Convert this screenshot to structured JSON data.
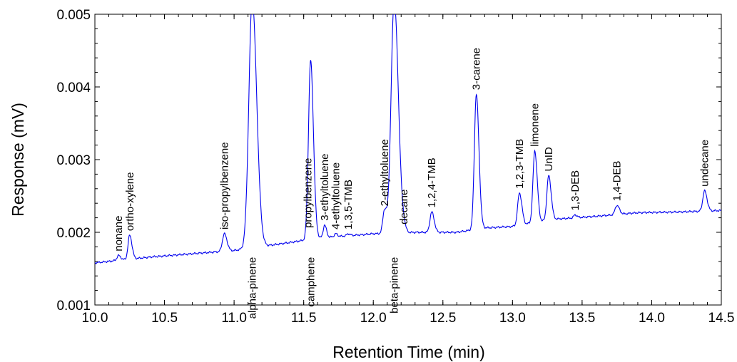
{
  "chart_data": {
    "type": "line",
    "xlabel": "Retention Time (min)",
    "ylabel": "Response (mV)",
    "xlim": [
      10.0,
      14.5
    ],
    "ylim": [
      0.001,
      0.005
    ],
    "xticks": [
      "10.0",
      "10.5",
      "11.0",
      "11.5",
      "12.0",
      "12.5",
      "13.0",
      "13.5",
      "14.0",
      "14.5"
    ],
    "yticks": [
      "0.001",
      "0.002",
      "0.003",
      "0.004",
      "0.005"
    ],
    "grid": false,
    "line_color": "#0000ee",
    "baseline": [
      [
        10.0,
        0.00158
      ],
      [
        10.4,
        0.00166
      ],
      [
        10.8,
        0.00172
      ],
      [
        11.0,
        0.00175
      ],
      [
        11.4,
        0.00186
      ],
      [
        11.6,
        0.00192
      ],
      [
        12.0,
        0.00198
      ],
      [
        12.3,
        0.002
      ],
      [
        12.6,
        0.002
      ],
      [
        12.8,
        0.00206
      ],
      [
        13.0,
        0.00208
      ],
      [
        13.3,
        0.00218
      ],
      [
        13.6,
        0.00222
      ],
      [
        13.9,
        0.00227
      ],
      [
        14.2,
        0.00228
      ],
      [
        14.5,
        0.0023
      ]
    ],
    "peaks": [
      {
        "label": "nonane",
        "rt": 10.17,
        "height": 0.00168,
        "width": 0.012,
        "label_side": "above"
      },
      {
        "label": "ortho-xylene",
        "rt": 10.25,
        "height": 0.00196,
        "width": 0.012,
        "label_side": "above"
      },
      {
        "label": "iso-propylbenzene",
        "rt": 10.93,
        "height": 0.00198,
        "width": 0.014,
        "label_side": "above"
      },
      {
        "label": "alpha-pinene",
        "rt": 11.13,
        "height": 0.0052,
        "width": 0.024,
        "label_side": "below"
      },
      {
        "label": "propylbenzene",
        "rt": 11.53,
        "height": 0.002,
        "width": 0.012,
        "label_side": "above"
      },
      {
        "label": "camphene",
        "rt": 11.55,
        "height": 0.00432,
        "width": 0.015,
        "label_side": "below"
      },
      {
        "label": "3-ethyltoluene",
        "rt": 11.65,
        "height": 0.0021,
        "width": 0.01,
        "label_side": "above"
      },
      {
        "label": "4-ethyltoluene",
        "rt": 11.73,
        "height": 0.00198,
        "width": 0.01,
        "label_side": "above"
      },
      {
        "label": "1,3,5-TMB",
        "rt": 11.82,
        "height": 0.00198,
        "width": 0.01,
        "label_side": "above"
      },
      {
        "label": "2-ethyltoluene",
        "rt": 12.08,
        "height": 0.0023,
        "width": 0.012,
        "label_side": "above"
      },
      {
        "label": "beta-pinene",
        "rt": 12.15,
        "height": 0.0052,
        "width": 0.022,
        "label_side": "below"
      },
      {
        "label": "decane",
        "rt": 12.22,
        "height": 0.00205,
        "width": 0.01,
        "label_side": "above"
      },
      {
        "label": "1,2,4-TMB",
        "rt": 12.42,
        "height": 0.00228,
        "width": 0.013,
        "label_side": "above"
      },
      {
        "label": "3-carene",
        "rt": 12.74,
        "height": 0.0039,
        "width": 0.014,
        "label_side": "above"
      },
      {
        "label": "1,2,3-TMB",
        "rt": 13.05,
        "height": 0.00254,
        "width": 0.013,
        "label_side": "above"
      },
      {
        "label": "limonene",
        "rt": 13.16,
        "height": 0.00312,
        "width": 0.013,
        "label_side": "above"
      },
      {
        "label": "UnID",
        "rt": 13.26,
        "height": 0.00278,
        "width": 0.013,
        "label_side": "above"
      },
      {
        "label": "1,3-DEB",
        "rt": 13.45,
        "height": 0.00224,
        "width": 0.01,
        "label_side": "above"
      },
      {
        "label": "1,4-DEB",
        "rt": 13.75,
        "height": 0.00237,
        "width": 0.013,
        "label_side": "above"
      },
      {
        "label": "undecane",
        "rt": 14.38,
        "height": 0.00257,
        "width": 0.013,
        "label_side": "above"
      }
    ]
  }
}
